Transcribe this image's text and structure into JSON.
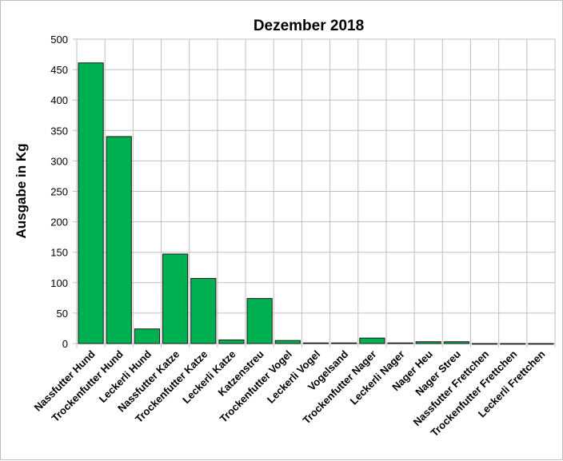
{
  "chart_data": {
    "type": "bar",
    "title": "Dezember 2018",
    "xlabel": "",
    "ylabel": "Ausgabe in Kg",
    "ylim": [
      0,
      500
    ],
    "yticks": [
      0,
      50,
      100,
      150,
      200,
      250,
      300,
      350,
      400,
      450,
      500
    ],
    "grid": true,
    "bar_color": "#00b050",
    "categories": [
      "Nassfutter Hund",
      "Trockenfutter Hund",
      "Leckerli Hund",
      "Nassfutter Katze",
      "Trockenfutter Katze",
      "Leckerli Katze",
      "Katzenstreu",
      "Trockenfutter Vogel",
      "Leckerli Vogel",
      "Vogelsand",
      "Trockenfutter Nager",
      "Leckerli Nager",
      "Nager Heu",
      "Nager Streu",
      "Nassfutter Frettchen",
      "Trockenfutter Frettchen",
      "Leckerli Frettchen"
    ],
    "values": [
      461,
      340,
      24,
      147,
      107,
      6,
      74,
      5,
      1,
      1,
      9,
      1,
      3,
      3,
      0,
      0,
      0
    ]
  }
}
